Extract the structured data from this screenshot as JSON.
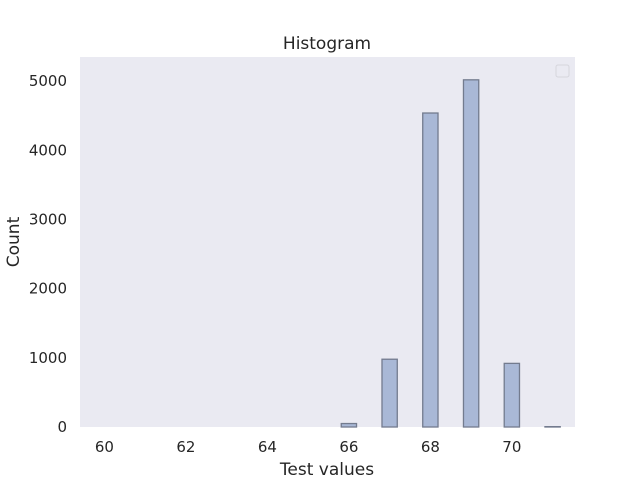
{
  "chart_data": {
    "type": "bar",
    "title": "Histogram",
    "xlabel": "Test values",
    "ylabel": "Count",
    "x": [
      66,
      67,
      68,
      69,
      70,
      71
    ],
    "values": [
      50,
      980,
      4540,
      5020,
      920,
      5
    ],
    "xlim": [
      59.4,
      71.55
    ],
    "ylim": [
      0,
      5350
    ],
    "xticks": [
      60,
      62,
      64,
      66,
      68,
      70
    ],
    "yticks": [
      0,
      1000,
      2000,
      3000,
      4000,
      5000
    ],
    "grid": false,
    "legend": "top-right",
    "colors": {
      "background": "#eaeaf2",
      "bar_fill": "#a9b8d6",
      "bar_edge": "#737b8e",
      "text": "#262626"
    }
  }
}
